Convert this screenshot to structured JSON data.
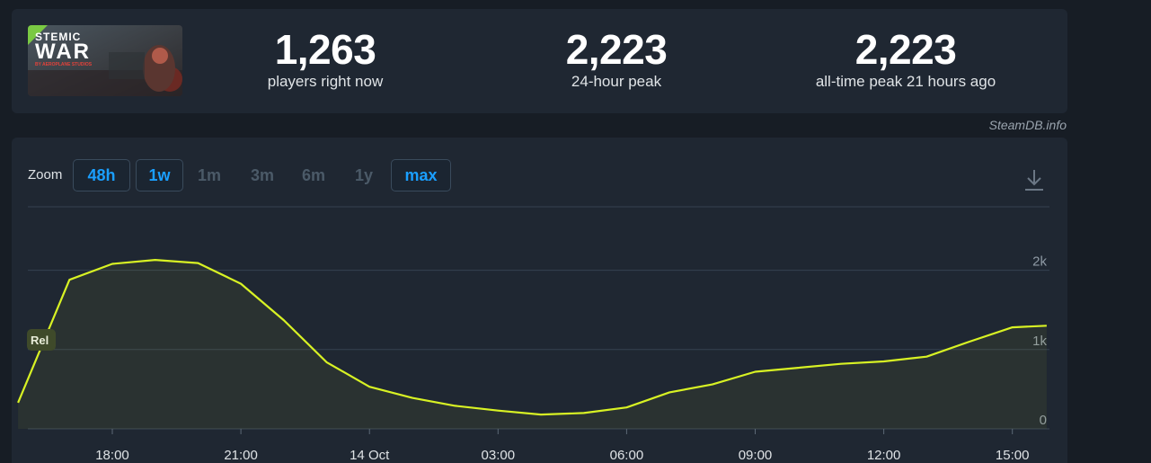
{
  "game": {
    "thumb_line1": "STEMIC",
    "thumb_line2": "WAR",
    "thumb_small": "BY AEROPLANE STUDIOS"
  },
  "stats": [
    {
      "value": "1,263",
      "label": "players right now"
    },
    {
      "value": "2,223",
      "label": "24-hour peak"
    },
    {
      "value": "2,223",
      "label": "all-time peak 21 hours ago"
    }
  ],
  "credit": "SteamDB.info",
  "zoom": {
    "label": "Zoom",
    "buttons": [
      {
        "label": "48h",
        "active": true
      },
      {
        "label": "1w",
        "active": true
      },
      {
        "label": "1m",
        "active": false
      },
      {
        "label": "3m",
        "active": false
      },
      {
        "label": "6m",
        "active": false
      },
      {
        "label": "1y",
        "active": false
      },
      {
        "label": "max",
        "active": true
      }
    ]
  },
  "release_badge": "Rel",
  "colors": {
    "line": "#d8f224",
    "accent": "#1a9fff",
    "panel": "#1f2732",
    "background": "#171d25"
  },
  "icons": {
    "download": "download-icon"
  },
  "chart_data": {
    "type": "line",
    "title": "",
    "xlabel": "",
    "ylabel": "",
    "x_ticks": [
      "18:00",
      "21:00",
      "14 Oct",
      "03:00",
      "06:00",
      "09:00",
      "12:00",
      "15:00"
    ],
    "y_ticks": [
      "0",
      "1k",
      "2k"
    ],
    "ylim": [
      0,
      2800
    ],
    "grid": true,
    "series": [
      {
        "x": [
          15.8,
          17,
          18,
          19,
          20,
          21,
          22,
          23,
          24,
          25,
          26,
          27,
          28,
          29,
          30,
          31,
          32,
          33,
          34,
          35,
          36,
          37,
          38,
          39,
          39.8
        ],
        "values": [
          330,
          1880,
          2080,
          2130,
          2090,
          1830,
          1370,
          840,
          530,
          390,
          290,
          230,
          180,
          200,
          270,
          460,
          560,
          720,
          770,
          820,
          850,
          910,
          1100,
          1280,
          1300
        ]
      }
    ]
  }
}
